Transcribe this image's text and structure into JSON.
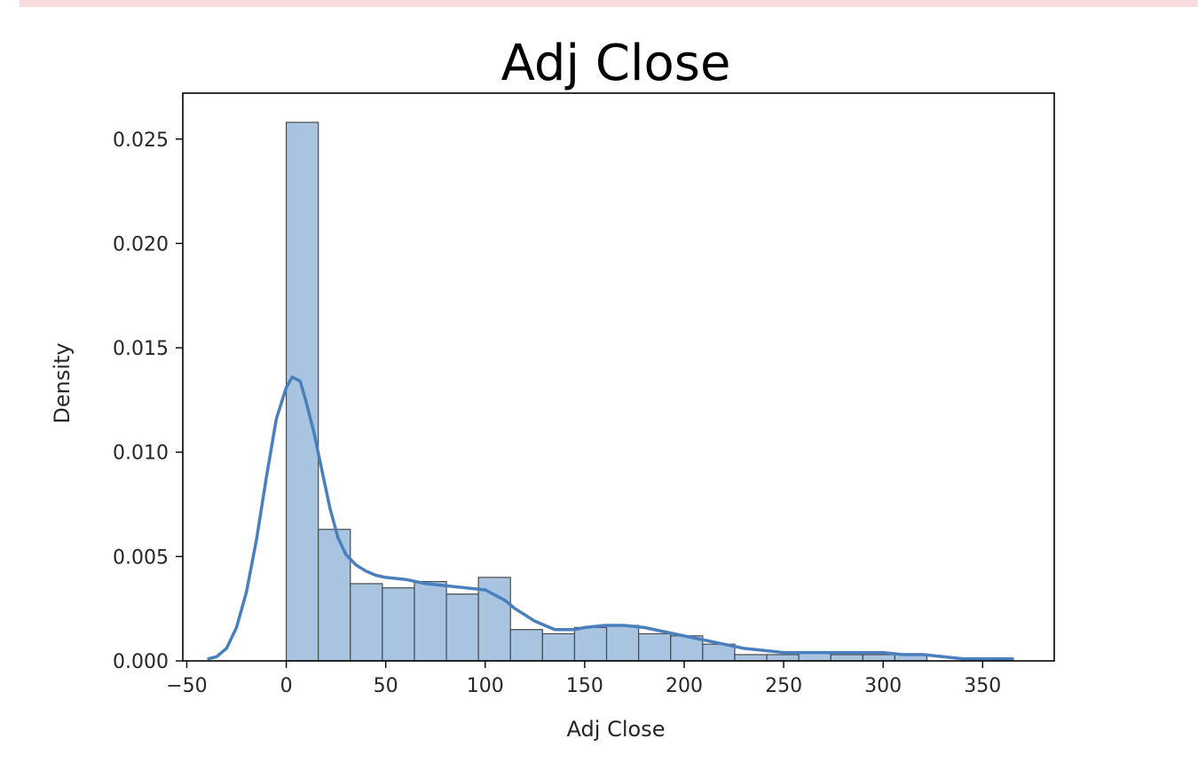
{
  "chart_data": {
    "type": "bar",
    "title": "Adj Close",
    "xlabel": "Adj Close",
    "ylabel": "Density",
    "xlim": [
      -52,
      386
    ],
    "ylim": [
      0,
      0.0272
    ],
    "x_ticks": [
      -50,
      0,
      50,
      100,
      150,
      200,
      250,
      300,
      350
    ],
    "x_tick_labels": [
      "−50",
      "0",
      "50",
      "100",
      "150",
      "200",
      "250",
      "300",
      "350"
    ],
    "y_ticks": [
      0.0,
      0.005,
      0.01,
      0.015,
      0.02,
      0.025
    ],
    "y_tick_labels": [
      "0.000",
      "0.005",
      "0.010",
      "0.015",
      "0.020",
      "0.025"
    ],
    "grid": false,
    "colors": {
      "bar_fill": "#a9c4e0",
      "bar_edge": "#4a4a4a",
      "kde_line": "#4a7fbd"
    },
    "histogram": {
      "bin_edges": [
        0,
        16.1,
        32.2,
        48.3,
        64.4,
        80.5,
        96.6,
        112.7,
        128.8,
        144.9,
        161.0,
        177.1,
        193.2,
        209.3,
        225.4,
        241.5,
        257.6,
        273.7,
        289.8,
        305.9,
        322.0
      ],
      "densities": [
        0.0258,
        0.0063,
        0.0037,
        0.0035,
        0.0038,
        0.0032,
        0.004,
        0.0015,
        0.0013,
        0.0016,
        0.0017,
        0.0013,
        0.0012,
        0.0008,
        0.0003,
        0.0003,
        0.0004,
        0.0003,
        0.0003,
        0.0003
      ]
    },
    "kde": {
      "x": [
        -39,
        -35,
        -30,
        -25,
        -20,
        -15,
        -10,
        -5,
        0,
        3,
        7,
        10,
        14,
        18,
        22,
        26,
        30,
        35,
        40,
        45,
        50,
        60,
        70,
        80,
        90,
        100,
        106,
        110,
        115,
        120,
        125,
        130,
        135,
        140,
        145,
        150,
        160,
        170,
        180,
        190,
        200,
        210,
        220,
        230,
        240,
        250,
        260,
        270,
        280,
        290,
        300,
        310,
        320,
        330,
        340,
        350,
        365
      ],
      "y": [
        0.0001,
        0.0002,
        0.0006,
        0.0016,
        0.0033,
        0.0058,
        0.0088,
        0.0116,
        0.0131,
        0.0136,
        0.0134,
        0.0124,
        0.0109,
        0.0091,
        0.0073,
        0.0059,
        0.0051,
        0.0046,
        0.0043,
        0.0041,
        0.004,
        0.0039,
        0.0037,
        0.0036,
        0.0035,
        0.0034,
        0.0031,
        0.0029,
        0.0025,
        0.0022,
        0.0019,
        0.0017,
        0.0015,
        0.0015,
        0.0015,
        0.0016,
        0.0017,
        0.0017,
        0.0016,
        0.0014,
        0.0012,
        0.001,
        0.0008,
        0.0006,
        0.0005,
        0.0004,
        0.0004,
        0.0004,
        0.0004,
        0.0004,
        0.0004,
        0.0003,
        0.0003,
        0.0002,
        0.0001,
        0.0001,
        0.0001
      ]
    }
  }
}
